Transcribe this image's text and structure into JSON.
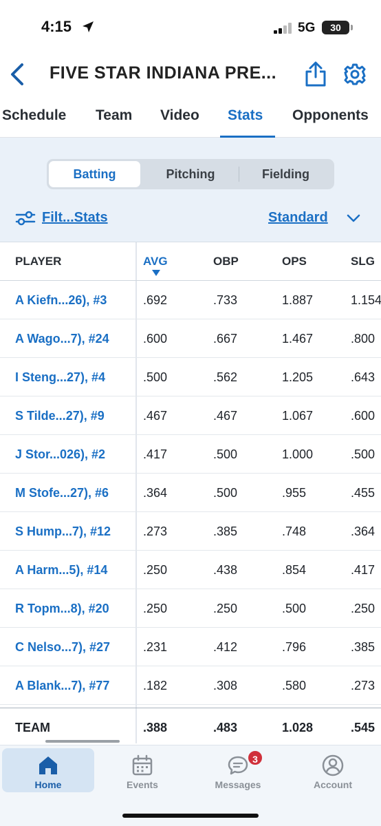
{
  "status_bar": {
    "time": "4:15",
    "network": "5G",
    "battery": "30"
  },
  "header": {
    "title": "FIVE STAR INDIANA PRE..."
  },
  "tabs": [
    {
      "label": "Schedule",
      "active": false
    },
    {
      "label": "Team",
      "active": false
    },
    {
      "label": "Video",
      "active": false
    },
    {
      "label": "Stats",
      "active": true
    },
    {
      "label": "Opponents",
      "active": false
    }
  ],
  "segments": [
    {
      "label": "Batting",
      "active": true
    },
    {
      "label": "Pitching",
      "active": false
    },
    {
      "label": "Fielding",
      "active": false
    }
  ],
  "filter": {
    "label": "Filt...Stats"
  },
  "view_select": {
    "value": "Standard"
  },
  "table": {
    "columns": [
      "PLAYER",
      "AVG",
      "OBP",
      "OPS",
      "SLG"
    ],
    "sorted_column": "AVG",
    "rows": [
      {
        "player": "A Kiefn...26), #3",
        "avg": ".692",
        "obp": ".733",
        "ops": "1.887",
        "slg": "1.154"
      },
      {
        "player": "A Wago...7), #24",
        "avg": ".600",
        "obp": ".667",
        "ops": "1.467",
        "slg": ".800"
      },
      {
        "player": "I Steng...27), #4",
        "avg": ".500",
        "obp": ".562",
        "ops": "1.205",
        "slg": ".643"
      },
      {
        "player": "S Tilde...27), #9",
        "avg": ".467",
        "obp": ".467",
        "ops": "1.067",
        "slg": ".600"
      },
      {
        "player": "J Stor...026), #2",
        "avg": ".417",
        "obp": ".500",
        "ops": "1.000",
        "slg": ".500"
      },
      {
        "player": "M Stofe...27), #6",
        "avg": ".364",
        "obp": ".500",
        "ops": ".955",
        "slg": ".455"
      },
      {
        "player": "S Hump...7), #12",
        "avg": ".273",
        "obp": ".385",
        "ops": ".748",
        "slg": ".364"
      },
      {
        "player": "A Harm...5), #14",
        "avg": ".250",
        "obp": ".438",
        "ops": ".854",
        "slg": ".417"
      },
      {
        "player": "R Topm...8), #20",
        "avg": ".250",
        "obp": ".250",
        "ops": ".500",
        "slg": ".250"
      },
      {
        "player": "C Nelso...7), #27",
        "avg": ".231",
        "obp": ".412",
        "ops": ".796",
        "slg": ".385"
      },
      {
        "player": "A Blank...7), #77",
        "avg": ".182",
        "obp": ".308",
        "ops": ".580",
        "slg": ".273"
      }
    ],
    "team": {
      "player": "TEAM",
      "avg": ".388",
      "obp": ".483",
      "ops": "1.028",
      "slg": ".545"
    }
  },
  "bottom_nav": [
    {
      "label": "Home",
      "icon": "home-icon",
      "active": true
    },
    {
      "label": "Events",
      "icon": "calendar-icon",
      "active": false
    },
    {
      "label": "Messages",
      "icon": "chat-icon",
      "active": false,
      "badge": "3"
    },
    {
      "label": "Account",
      "icon": "account-icon",
      "active": false
    }
  ],
  "colors": {
    "accent": "#1a6fc4",
    "badge": "#d0303b",
    "stats_bg": "#eaf1f9"
  }
}
